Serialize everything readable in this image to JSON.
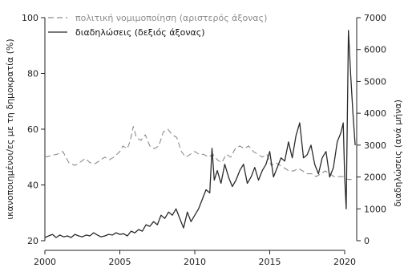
{
  "chart_data": {
    "type": "line",
    "xlim": [
      2000,
      2020.8
    ],
    "x_ticks": [
      2000,
      2005,
      2010,
      2015,
      2020
    ],
    "left_axis": {
      "label": "ικανοποιημένοι/ες με τη δημοκρατία (%)",
      "ylim": [
        20,
        100
      ],
      "ticks": [
        20,
        40,
        60,
        80,
        100
      ]
    },
    "right_axis": {
      "label": "διαδηλώσεις (ανά μήνα)",
      "ylim": [
        0,
        7000
      ],
      "ticks": [
        0,
        1000,
        2000,
        3000,
        4000,
        5000,
        6000,
        7000
      ]
    },
    "series": [
      {
        "name": "πολιτική νομιμοποίηση (αριστερός άξονας)",
        "axis": "left",
        "style": "dashed",
        "color": "#8c8c8c",
        "x": [
          2000.0,
          2000.4,
          2000.8,
          2001.2,
          2001.6,
          2002.0,
          2002.3,
          2002.7,
          2003.0,
          2003.3,
          2003.6,
          2004.0,
          2004.3,
          2004.6,
          2005.0,
          2005.2,
          2005.5,
          2005.7,
          2005.9,
          2006.1,
          2006.4,
          2006.7,
          2007.0,
          2007.3,
          2007.6,
          2007.9,
          2008.2,
          2008.5,
          2008.8,
          2009.1,
          2009.4,
          2009.7,
          2010.0,
          2010.3,
          2010.6,
          2010.9,
          2011.2,
          2011.5,
          2011.8,
          2012.1,
          2012.4,
          2012.7,
          2013.0,
          2013.3,
          2013.6,
          2013.9,
          2014.2,
          2014.5,
          2014.8,
          2015.1,
          2015.4,
          2015.7,
          2016.0,
          2016.3,
          2016.6,
          2016.9,
          2017.2,
          2017.5,
          2017.8,
          2018.1,
          2018.4,
          2018.7,
          2019.0,
          2019.3,
          2019.6,
          2019.9,
          2020.2,
          2020.5
        ],
        "values": [
          50,
          50.5,
          51,
          52,
          48,
          47,
          48,
          49.5,
          48,
          47.5,
          48.5,
          50,
          49,
          50,
          52,
          54,
          53,
          56,
          61,
          57,
          56,
          58,
          54,
          53,
          54,
          59,
          60,
          58,
          57,
          52,
          50,
          51,
          52,
          51,
          51,
          50,
          51,
          49,
          48,
          51,
          50,
          53,
          54,
          53,
          54,
          52,
          51,
          50,
          51,
          47,
          48,
          47,
          46,
          45,
          45,
          46,
          45,
          44,
          44,
          43,
          44,
          45,
          44,
          43,
          43,
          43,
          42,
          42
        ]
      },
      {
        "name": "διαδηλώσεις (δεξιός άξονας)",
        "axis": "right",
        "style": "solid",
        "color": "#2a2a2a",
        "x": [
          2000.0,
          2000.25,
          2000.5,
          2000.75,
          2001.0,
          2001.25,
          2001.5,
          2001.75,
          2002.0,
          2002.25,
          2002.5,
          2002.75,
          2003.0,
          2003.25,
          2003.5,
          2003.75,
          2004.0,
          2004.25,
          2004.5,
          2004.75,
          2005.0,
          2005.25,
          2005.5,
          2005.75,
          2006.0,
          2006.25,
          2006.5,
          2006.75,
          2007.0,
          2007.25,
          2007.5,
          2007.75,
          2008.0,
          2008.25,
          2008.5,
          2008.75,
          2009.0,
          2009.25,
          2009.5,
          2009.75,
          2010.0,
          2010.25,
          2010.5,
          2010.75,
          2011.0,
          2011.15,
          2011.3,
          2011.5,
          2011.75,
          2012.0,
          2012.25,
          2012.5,
          2012.75,
          2013.0,
          2013.25,
          2013.5,
          2013.75,
          2014.0,
          2014.25,
          2014.5,
          2014.75,
          2015.0,
          2015.25,
          2015.5,
          2015.75,
          2016.0,
          2016.25,
          2016.5,
          2016.75,
          2017.0,
          2017.25,
          2017.5,
          2017.75,
          2018.0,
          2018.25,
          2018.5,
          2018.75,
          2019.0,
          2019.25,
          2019.5,
          2019.75,
          2019.9,
          2020.0,
          2020.1,
          2020.25,
          2020.4,
          2020.55,
          2020.7
        ],
        "values": [
          100,
          150,
          200,
          100,
          180,
          120,
          150,
          100,
          200,
          150,
          120,
          180,
          150,
          250,
          180,
          120,
          150,
          200,
          180,
          250,
          200,
          220,
          150,
          300,
          250,
          350,
          300,
          500,
          450,
          600,
          500,
          800,
          700,
          900,
          800,
          1000,
          700,
          400,
          900,
          600,
          800,
          1000,
          1300,
          1600,
          1500,
          2900,
          1900,
          2200,
          1800,
          2400,
          2000,
          1700,
          1900,
          2200,
          2400,
          1800,
          2000,
          2300,
          1900,
          2200,
          2400,
          2800,
          2000,
          2300,
          2600,
          2500,
          3100,
          2600,
          3300,
          3700,
          2600,
          2700,
          3000,
          2400,
          2100,
          2600,
          2800,
          2000,
          2300,
          3100,
          3400,
          3700,
          2000,
          1000,
          6600,
          5200,
          4000,
          3000
        ]
      }
    ]
  }
}
